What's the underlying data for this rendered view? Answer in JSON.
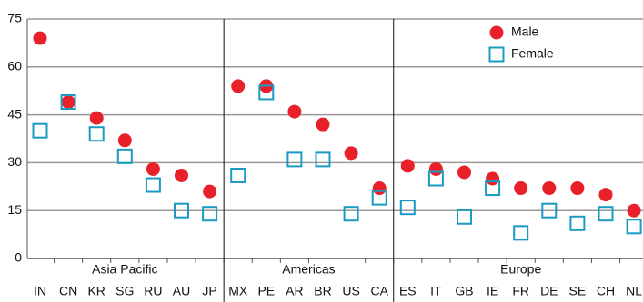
{
  "chart_data": {
    "type": "dot",
    "groups": [
      {
        "name": "Asia Pacific",
        "categories": [
          "IN",
          "CN",
          "KR",
          "SG",
          "RU",
          "AU",
          "JP"
        ]
      },
      {
        "name": "Americas",
        "categories": [
          "MX",
          "PE",
          "AR",
          "BR",
          "US",
          "CA"
        ]
      },
      {
        "name": "Europe",
        "categories": [
          "ES",
          "IT",
          "GB",
          "IE",
          "FR",
          "DE",
          "SE",
          "CH",
          "NL"
        ]
      }
    ],
    "series": [
      {
        "name": "Male",
        "color": "#e8202a",
        "marker": "circle",
        "values": [
          69,
          49,
          44,
          37,
          28,
          26,
          21,
          54,
          54,
          46,
          42,
          33,
          22,
          29,
          28,
          27,
          25,
          22,
          22,
          22,
          20,
          15
        ]
      },
      {
        "name": "Female",
        "color": "#1a9bc4",
        "marker": "square",
        "values": [
          40,
          49,
          39,
          32,
          23,
          15,
          14,
          26,
          52,
          31,
          31,
          14,
          19,
          16,
          25,
          13,
          22,
          8,
          15,
          11,
          14,
          10
        ]
      }
    ],
    "ylim": [
      0,
      75
    ],
    "yticks": [
      0,
      15,
      30,
      45,
      60,
      75
    ],
    "grid": true,
    "legend": "top-right"
  }
}
